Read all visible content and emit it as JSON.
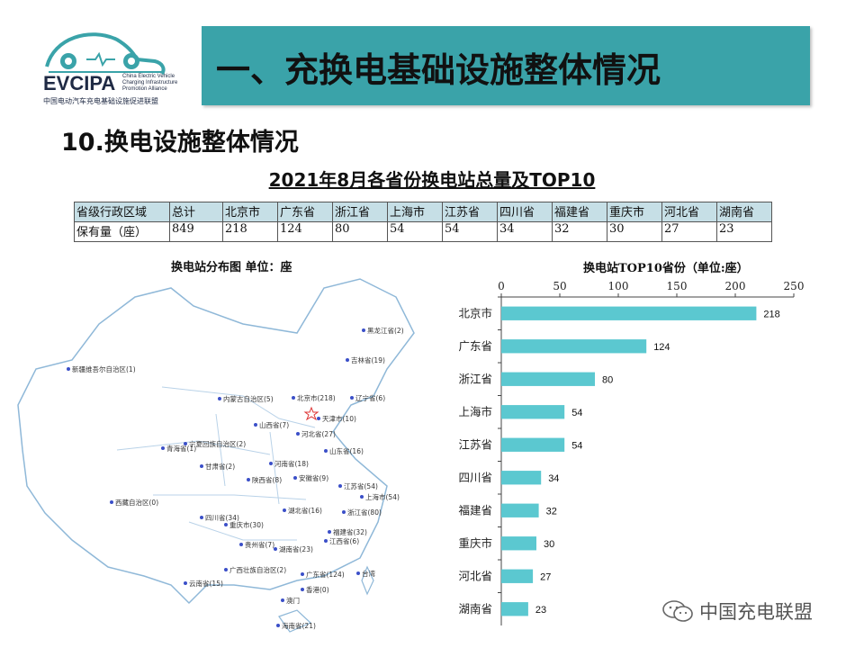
{
  "logo": {
    "word": "EVCIPA",
    "en_lines": [
      "China Electric Vehicle",
      "Charging Infrastructure",
      "Promotion Alliance"
    ],
    "cn": "中国电动汽车充电基础设施促进联盟"
  },
  "header": {
    "title": "一、充换电基础设施整体情况"
  },
  "section_title": "10.换电设施整体情况",
  "table": {
    "title": "2021年8月各省份换电站总量及TOP10",
    "header": [
      "省级行政区域",
      "总计",
      "北京市",
      "广东省",
      "浙江省",
      "上海市",
      "江苏省",
      "四川省",
      "福建省",
      "重庆市",
      "河北省",
      "湖南省"
    ],
    "values": [
      "保有量（座）",
      "849",
      "218",
      "124",
      "80",
      "54",
      "54",
      "34",
      "32",
      "30",
      "27",
      "23"
    ]
  },
  "map": {
    "title": "换电站分布图   单位：座",
    "labels": [
      "黑龙江省(2)",
      "吉林省(19)",
      "新疆维吾尔自治区(1)",
      "内蒙古自治区(5)",
      "北京市(218)",
      "辽宁省(6)",
      "天津市(10)",
      "山西省(7)",
      "河北省(27)",
      "宁夏回族自治区(2)",
      "青海省(1)",
      "山东省(16)",
      "甘肃省(2)",
      "河南省(18)",
      "陕西省(8)",
      "安徽省(9)",
      "江苏省(54)",
      "上海市(54)",
      "西藏自治区(0)",
      "四川省(34)",
      "湖北省(16)",
      "浙江省(80)",
      "重庆市(30)",
      "贵州省(7)",
      "湖南省(23)",
      "江西省(6)",
      "福建省(32)",
      "广西壮族自治区(2)",
      "云南省(15)",
      "广东省(124)",
      "台湾",
      "澳门",
      "香港(0)",
      "海南省(21)"
    ]
  },
  "chart_data": {
    "type": "bar",
    "orientation": "horizontal",
    "title": "换电站TOP10省份（单位:座）",
    "categories": [
      "北京市",
      "广东省",
      "浙江省",
      "上海市",
      "江苏省",
      "四川省",
      "福建省",
      "重庆市",
      "河北省",
      "湖南省"
    ],
    "values": [
      218,
      124,
      80,
      54,
      54,
      34,
      32,
      30,
      27,
      23
    ],
    "xlim": [
      0,
      250
    ],
    "xticks": [
      0,
      50,
      100,
      150,
      200,
      250
    ],
    "grid": false,
    "bar_color": "#5bc8d0"
  },
  "watermark": {
    "text": "中国充电联盟",
    "icon": "wechat-icon"
  }
}
